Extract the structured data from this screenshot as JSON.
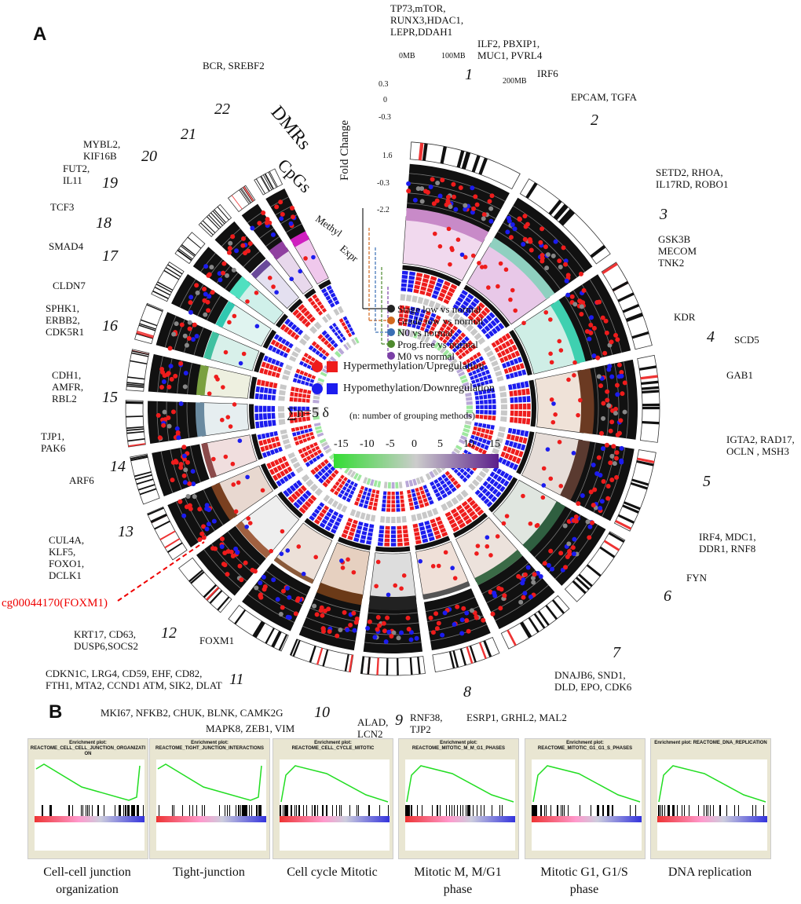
{
  "panels": {
    "a": "A",
    "b": "B"
  },
  "track_labels": {
    "fold_change": "Fold Change",
    "dmrs": "DMRs",
    "cpgs": "CpGs",
    "methyl": "Methyl",
    "expr": "Expr"
  },
  "axis_ticks": {
    "fc_top": [
      "0.3",
      "0",
      "-0.3"
    ],
    "fc_bottom": [
      "1.6",
      "-0.3",
      "-2.2"
    ],
    "mb": [
      "0MB",
      "100MB",
      "200MB"
    ]
  },
  "chromosomes": [
    "1",
    "2",
    "3",
    "4",
    "5",
    "6",
    "7",
    "8",
    "9",
    "10",
    "11",
    "12",
    "13",
    "14",
    "15",
    "16",
    "17",
    "18",
    "19",
    "20",
    "21",
    "22"
  ],
  "gene_labels": [
    "TP73,mTOR,\nRUNX3,HDAC1,\nLEPR,DDAH1",
    "ILF2, PBXIP1,\nMUC1, PVRL4",
    "IRF6",
    "EPCAM, TGFA",
    "SETD2, RHOA,\nIL17RD, ROBO1",
    "GSK3B\nMECOM\nTNK2",
    "KDR",
    "SCD5",
    "GAB1",
    "IGTA2, RAD17,\nOCLN , MSH3",
    "IRF4, MDC1,\nDDR1, RNF8",
    "FYN",
    "DNAJB6, SND1,\nDLD, EPO, CDK6",
    "ESRP1, GRHL2, MAL2",
    "RNF38,\nTJP2",
    "ALAD,\nLCN2",
    "MAPK8, ZEB1, VIM",
    "MKI67, NFKB2, CHUK, BLNK, CAMK2G",
    "CDKN1C, LRG4, CD59, EHF, CD82,\nFTH1, MTA2, CCND1 ATM, SIK2, DLAT",
    "FOXM1",
    "KRT17, CD63,\nDUSP6,SOCS2",
    "CUL4A,\nKLF5,\nFOXO1,\nDCLK1",
    "ARF6",
    "TJP1,\nPAK6",
    "CDH1,\nAMFR,\nRBL2",
    "SPHK1,\nERBB2,\nCDK5R1",
    "CLDN7",
    "SMAD4",
    "TCF3",
    "FUT2,\nIL11",
    "MYBL2,\nKIF16B",
    "BCR, SREBF2"
  ],
  "highlight_probe": "cg00044170(FOXM1)",
  "grouping_legend": [
    {
      "label": "Stage low vs normal",
      "color": "#222222"
    },
    {
      "label": "Grade low vs normal",
      "color": "#d2691e"
    },
    {
      "label": "N0 vs normal",
      "color": "#3a6fb5"
    },
    {
      "label": "Prog.free vs normal",
      "color": "#4e8a2e"
    },
    {
      "label": "M0 vs normal",
      "color": "#7b3fa6"
    }
  ],
  "direction_legend": [
    {
      "label": "Hypermethylation/Upregulation",
      "color": "#ee1c1c"
    },
    {
      "label": "Hypomethylation/Downregulation",
      "color": "#1c1cee"
    }
  ],
  "delta_legend": {
    "formula": "∑n=5 δ",
    "note": "(n: number of grouping methods)",
    "ticks": [
      "-15",
      "-10",
      "-5",
      "0",
      "5",
      "10",
      "15"
    ]
  },
  "gsea": [
    {
      "t1": "Enrichment plot:",
      "t2": "REACTOME_CELL_CELL_JUNCTION_ORGANIZATION",
      "caption": "Cell-cell junction organization",
      "shape": "down"
    },
    {
      "t1": "Enrichment plot:",
      "t2": "REACTOME_TIGHT_JUNCTION_INTERACTIONS",
      "caption": "Tight-junction",
      "shape": "down"
    },
    {
      "t1": "Enrichment plot: REACTOME_CELL_CYCLE_MITOTIC",
      "t2": "",
      "caption": "Cell cycle Mitotic",
      "shape": "up"
    },
    {
      "t1": "Enrichment plot:",
      "t2": "REACTOME_MITOTIC_M_M_G1_PHASES",
      "caption": "Mitotic M, M/G1 phase",
      "shape": "up"
    },
    {
      "t1": "Enrichment plot:",
      "t2": "REACTOME_MITOTIC_G1_G1_S_PHASES",
      "caption": "Mitotic G1, G1/S phase",
      "shape": "up"
    },
    {
      "t1": "Enrichment plot: REACTOME_DNA_REPLICATION",
      "t2": "",
      "caption": "DNA replication",
      "shape": "up"
    }
  ]
}
